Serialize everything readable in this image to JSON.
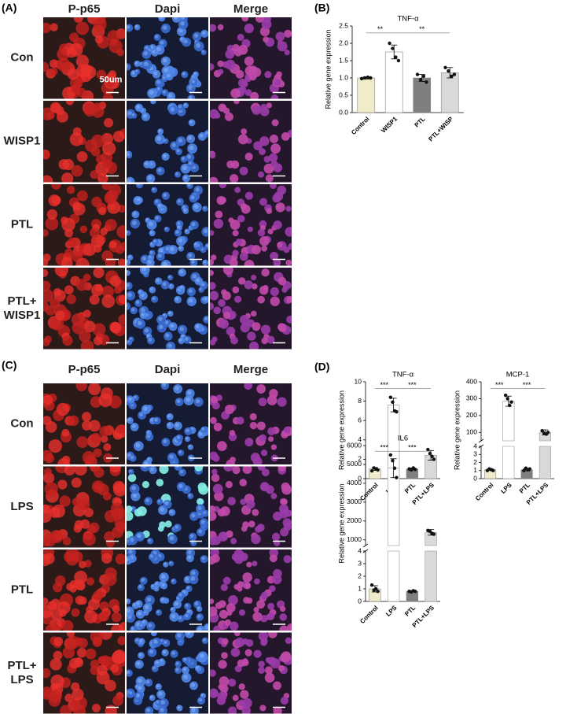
{
  "figures": [
    {
      "label": "(A)",
      "columns": [
        "P-p65",
        "Dapi",
        "Merge"
      ],
      "rows": [
        "Con",
        "WISP1",
        "PTL",
        "PTL+\nWISP1"
      ],
      "scale_label": "50um"
    },
    {
      "label": "(C)",
      "columns": [
        "P-p65",
        "Dapi",
        "Merge"
      ],
      "rows": [
        "Con",
        "LPS",
        "PTL",
        "PTL+\nLPS"
      ]
    }
  ],
  "chart_labels": [
    "(B)",
    "(D)"
  ],
  "chart_data": [
    {
      "type": "bar",
      "title": "TNF-α",
      "ylabel": "Relative gene expression",
      "categories": [
        "Control",
        "WISP1",
        "PTL",
        "PTL+WISP"
      ],
      "values": [
        1.0,
        1.75,
        1.0,
        1.15
      ],
      "errors": [
        0.03,
        0.2,
        0.1,
        0.15
      ],
      "points": [
        [
          0.98,
          1.0,
          1.02,
          1.0
        ],
        [
          2.0,
          1.85,
          1.6,
          1.5
        ],
        [
          1.1,
          0.95,
          1.05,
          0.88
        ],
        [
          1.3,
          1.2,
          1.05,
          1.1
        ]
      ],
      "colors": [
        "#f0ebc8",
        "#ffffff",
        "#7f7f7f",
        "#d9d9d9"
      ],
      "ylim": [
        0,
        2.5
      ],
      "yticks": [
        {
          "value": 0,
          "label": "0.0"
        },
        {
          "value": 0.5,
          "label": "0.5"
        },
        {
          "value": 1,
          "label": "1.0"
        },
        {
          "value": 1.5,
          "label": "1.5"
        },
        {
          "value": 2,
          "label": "2.0"
        },
        {
          "value": 2.5,
          "label": "2.5"
        }
      ],
      "annotations": [
        {
          "text": "**",
          "from": 0,
          "to": 1,
          "y": 2.3
        },
        {
          "text": "**",
          "from": 1,
          "to": 3,
          "y": 2.3
        }
      ]
    },
    {
      "type": "bar",
      "title": "TNF-α",
      "ylabel": "Relative  gene expression",
      "categories": [
        "Control",
        "LPS",
        "PTL",
        "PTL+LPS"
      ],
      "values": [
        1.0,
        7.6,
        1.0,
        2.4
      ],
      "errors": [
        0.15,
        0.7,
        0.1,
        0.5
      ],
      "points": [
        [
          0.8,
          1.1,
          1.0,
          0.9
        ],
        [
          8.4,
          7.9,
          7.0,
          6.9
        ],
        [
          1.0,
          0.9,
          1.1,
          0.95
        ],
        [
          3.0,
          2.6,
          2.3,
          2.0
        ]
      ],
      "colors": [
        "#f0ebc8",
        "#ffffff",
        "#7f7f7f",
        "#d9d9d9"
      ],
      "ylim": [
        0,
        10
      ],
      "yticks": [
        0,
        2,
        4,
        6,
        8,
        10
      ],
      "annotations": [
        {
          "text": "***",
          "from": 0,
          "to": 1,
          "y": 9.3
        },
        {
          "text": "***",
          "from": 1,
          "to": 3,
          "y": 9.3
        }
      ]
    },
    {
      "type": "bar",
      "title": "MCP-1",
      "ylabel": "Relative gene expression",
      "categories": [
        "Control",
        "LPS",
        "PTL",
        "PTL+LPS"
      ],
      "values": [
        1.1,
        285,
        1.1,
        100
      ],
      "errors": [
        0.1,
        30,
        0.15,
        15
      ],
      "points": [
        [
          1.0,
          1.2,
          1.1,
          1.0
        ],
        [
          320,
          300,
          260,
          280
        ],
        [
          1.0,
          1.3,
          1.1,
          1.2
        ],
        [
          110,
          95,
          90,
          100
        ]
      ],
      "colors": [
        "#f0ebc8",
        "#ffffff",
        "#7f7f7f",
        "#d9d9d9"
      ],
      "ylim": [
        0,
        4
      ],
      "yticks": [
        0,
        1,
        2,
        3,
        4
      ],
      "y_break": {
        "ylim": [
          50,
          400
        ],
        "yticks": [
          100,
          200,
          300,
          400
        ]
      },
      "annotations": [
        {
          "text": "***",
          "from": 0,
          "to": 1,
          "y": 360
        },
        {
          "text": "***",
          "from": 1,
          "to": 3,
          "y": 360
        }
      ]
    },
    {
      "type": "bar",
      "title": "IL6",
      "ylabel": "Relative gene expression",
      "categories": [
        "Control",
        "LPS",
        "PTL",
        "PTL+LPS"
      ],
      "values": [
        1.0,
        4800,
        0.8,
        1400
      ],
      "errors": [
        0.25,
        500,
        0.05,
        150
      ],
      "points": [
        [
          1.3,
          0.9,
          1.0,
          0.8
        ],
        [
          5500,
          5200,
          4800,
          4300
        ],
        [
          0.8,
          0.75,
          0.85,
          0.8
        ],
        [
          1500,
          1450,
          1350,
          1300
        ]
      ],
      "colors": [
        "#f0ebc8",
        "#ffffff",
        "#7f7f7f",
        "#d9d9d9"
      ],
      "ylim": [
        0,
        4
      ],
      "yticks": [
        0,
        1,
        2,
        3,
        4
      ],
      "y_break": {
        "ylim": [
          700,
          6000
        ],
        "yticks": [
          1000,
          2000,
          3000,
          4000,
          5000,
          6000
        ]
      },
      "annotations": [
        {
          "text": "***",
          "from": 0,
          "to": 1,
          "y": 5700
        },
        {
          "text": "***",
          "from": 1,
          "to": 3,
          "y": 5700
        }
      ]
    }
  ]
}
